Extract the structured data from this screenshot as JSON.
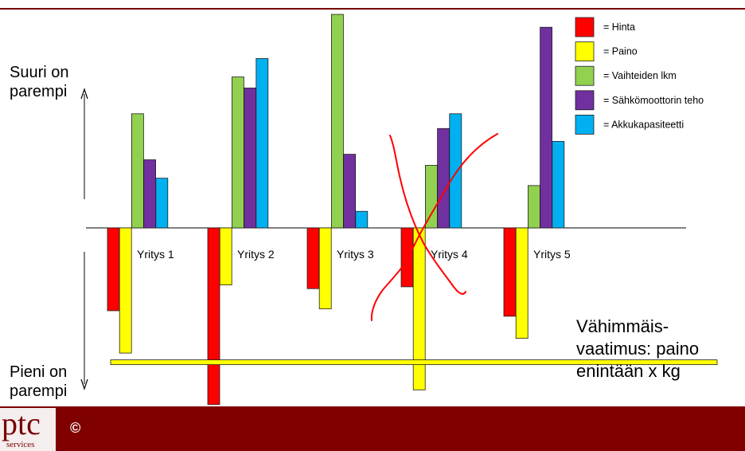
{
  "chart_data": {
    "type": "bar",
    "categories": [
      "Yritys 1",
      "Yritys 2",
      "Yritys 3",
      "Yritys 4",
      "Yritys 5"
    ],
    "series": [
      {
        "name": "= Hinta",
        "color": "#ff0000",
        "values": [
          -4.5,
          -9.6,
          -3.3,
          -3.2,
          -4.8
        ]
      },
      {
        "name": "= Paino",
        "color": "#ffff00",
        "values": [
          -6.8,
          -3.1,
          -4.4,
          -8.8,
          -6.0
        ]
      },
      {
        "name": "= Vaihteiden lkm",
        "color": "#92d050",
        "values": [
          6.2,
          8.2,
          11.6,
          3.4,
          2.3
        ]
      },
      {
        "name": "= Sähkömoottorin teho",
        "color": "#7030a0",
        "values": [
          3.7,
          7.6,
          4.0,
          5.4,
          10.9
        ]
      },
      {
        "name": "= Akkukapasiteetti",
        "color": "#00b0f0",
        "values": [
          2.7,
          9.2,
          0.9,
          6.2,
          4.7
        ]
      }
    ],
    "ylim": [
      -9.6,
      11.6
    ],
    "minimum_requirement_line": -7.3,
    "legend_position": "top-right",
    "grid": false
  },
  "labels": {
    "top": "Suuri on\nparempi",
    "bottom": "Pieni on\nparempi",
    "requirement_note": "Vähimmäis-\nvaatimus: paino\nenintään x kg"
  },
  "footer": {
    "logo_text": "ptc",
    "logo_subtext": "services",
    "copyright": "©"
  },
  "colors": {
    "footer_background": "#800000",
    "top_rule": "#7a0000",
    "crossout": "#ff0000"
  }
}
